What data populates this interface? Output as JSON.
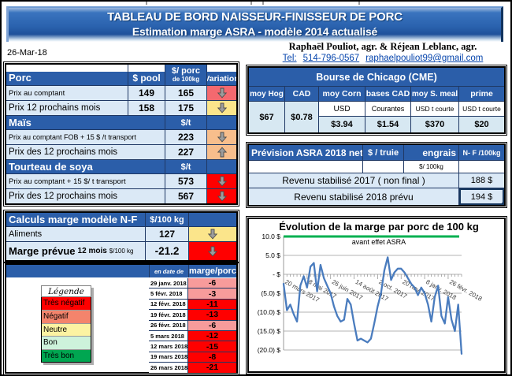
{
  "header": {
    "title1": "TABLEAU DE BORD NAISSEUR-FINISSEUR DE PORC",
    "title2": "Estimation marge ASRA - modèle 2014 actualisé"
  },
  "date_label": "26-Mar-18",
  "contact": {
    "names": "Raphaël Pouliot, agr.    &    Réjean Leblanc, agr.",
    "tel_label": "Tel:",
    "phone": "514-796-0567",
    "email": "raphaelpouliot99@gmail.com"
  },
  "colors": {
    "header_blue": "#2b5ea9",
    "light_blue": "#dbe9f6",
    "red": "#ff0000",
    "coral": "#f4696f",
    "pink": "#f79b9b",
    "yellow": "#fbe58b",
    "peach": "#f8be8c",
    "green": "#00a651",
    "chart_line": "#4a7cbe",
    "reference_green": "#00b050"
  },
  "porc": {
    "header": {
      "col1": "Porc",
      "col2": "$ pool",
      "col3a": "$/ porc",
      "col3b": "de 100kg",
      "col4": "Variation"
    },
    "rows": [
      {
        "label": "Prix au comptant",
        "pool": "149",
        "value": "165",
        "dir": "down",
        "color": "#f4696f"
      },
      {
        "label": "Prix 12 prochains mois",
        "pool": "158",
        "value": "175",
        "dir": "down",
        "color": "#fbe58b"
      }
    ],
    "mais": {
      "title": "Maïs",
      "unit": "$/t",
      "rows": [
        {
          "label": "Prix au comptant  FOB + 15 $ /t transport",
          "value": "223",
          "dir": "down",
          "color": "#f8be8c"
        },
        {
          "label": "Prix des 12 prochains mois",
          "value": "227",
          "dir": "up",
          "color": "#f8be8c"
        }
      ]
    },
    "soya": {
      "title": "Tourteau de soya",
      "unit": "$/t",
      "rows": [
        {
          "label": "Prix au comptant  + 15 $/ t  transport",
          "value": "573",
          "dir": "down",
          "color": "#ff0000"
        },
        {
          "label": "Prix des 12 prochains mois",
          "value": "567",
          "dir": "down",
          "color": "#ff0000"
        }
      ]
    }
  },
  "cme": {
    "title": "Bourse de Chicago (CME)",
    "cols": [
      {
        "h": "moy Hog",
        "sub": "",
        "v": "$67"
      },
      {
        "h": "CAD",
        "sub": "",
        "v": "$0.78"
      },
      {
        "h": "moy Corn",
        "sub": "USD",
        "v": "$3.94"
      },
      {
        "h": "bases CAD",
        "sub": "Courantes",
        "v": "$1.54"
      },
      {
        "h": "moy S. meal",
        "sub": "USD t courte",
        "v": "$370"
      },
      {
        "h": "prime",
        "sub": "USD t courte",
        "v": "$20"
      }
    ]
  },
  "asra": {
    "title": "Prévision ASRA 2018 net",
    "col2": "$ / truie",
    "col3": "engrais",
    "col4": "N- F /100kg",
    "sub3": "$/ 100kg",
    "rows": [
      {
        "label": "Revenu stabilisé 2017 ( non final )",
        "value": "188 $"
      },
      {
        "label": "Revenu stabilisé 2018 prévu",
        "value": "194 $"
      }
    ]
  },
  "calc": {
    "title": "Calculs marge  modèle N-F",
    "unit": "$/100 kg",
    "aliments": {
      "label": "Aliments",
      "value": "127",
      "dir": "down",
      "color": "#fbe58b"
    },
    "marge": {
      "label": "Marge prévue",
      "label2": "12 mois",
      "label3": "$/100 kg",
      "value": "-21.2",
      "dir": "down",
      "color": "#ff0000"
    }
  },
  "history": {
    "col_date": "en date de",
    "col_marge": "marge/porc",
    "rows": [
      {
        "date": "29 janv. 2018",
        "value": "-6",
        "color": "#f79b9b"
      },
      {
        "date": "5 févr. 2018",
        "value": "-3",
        "color": "#f79b9b"
      },
      {
        "date": "12 févr. 2018",
        "value": "-11",
        "color": "#ff0000"
      },
      {
        "date": "19 févr. 2018",
        "value": "-13",
        "color": "#ff0000"
      },
      {
        "date": "26 févr. 2018",
        "value": "-6",
        "color": "#f79b9b"
      },
      {
        "date": "5 mars 2018",
        "value": "-12",
        "color": "#ff0000"
      },
      {
        "date": "12 mars 2018",
        "value": "-15",
        "color": "#ff0000"
      },
      {
        "date": "19 mars 2018",
        "value": "-8",
        "color": "#ff0000"
      },
      {
        "date": "26 mars 2018",
        "value": "-21",
        "color": "#ff0000"
      }
    ]
  },
  "legend": {
    "title": "Légende",
    "items": [
      {
        "label": "Très négatif",
        "color": "#ff0000"
      },
      {
        "label": "Négatif",
        "color": "#f4846c"
      },
      {
        "label": "Neutre",
        "color": "#fcf3a2"
      },
      {
        "label": "Bon",
        "color": "#cdf2db"
      },
      {
        "label": "Très bon",
        "color": "#00a651"
      }
    ]
  },
  "chart_data": {
    "type": "line",
    "title": "Évolution de la marge par porc de 100 kg",
    "subtitle": "avant effet ASRA",
    "xlabel": "",
    "ylabel": "$ / porc de 100 kg",
    "ylim": [
      -20,
      10
    ],
    "ytick_values": [
      10,
      5,
      0,
      -5,
      -10,
      -15,
      -20
    ],
    "ytick_labels": [
      "10.0 $",
      "5.0 $",
      "-   $",
      "(5.0) $",
      "(10.0) $",
      "(15.0) $",
      "(20.0) $"
    ],
    "x_frequency": "weekly",
    "xtick_positions": [
      0,
      7,
      14,
      21,
      28,
      35,
      42,
      49
    ],
    "xtick_labels": [
      "20 mars 2017",
      "8 mai 2017",
      "26 juin 2017",
      "14 août 2017",
      "2 oct. 2017",
      "20 nov. 2017",
      "8 janv. 2018",
      "26 févr. 2018"
    ],
    "grid": true,
    "reference_line": {
      "y": 10,
      "color": "#00b050"
    },
    "series": [
      {
        "name": "marge par porc avant effet ASRA",
        "color": "#4a7cbe",
        "values": [
          -2.5,
          -9.5,
          -8,
          -10.5,
          -12.5,
          -3,
          -0.5,
          -3.5,
          2,
          3,
          -4.5,
          2.5,
          -1,
          -3,
          -5,
          -8.5,
          -11,
          -12.5,
          -12,
          -6.5,
          -8,
          -13,
          -17.5,
          -17,
          -17.5,
          -18,
          -17,
          -13,
          -8.5,
          -5,
          1,
          4.5,
          -1.5,
          0.5,
          1.5,
          1.5,
          0.5,
          -1,
          -2.5,
          -3.5,
          -5.5,
          -3.5,
          -5,
          -8,
          -12.5,
          -6,
          -3,
          -11,
          -13,
          -6,
          -12,
          -15,
          -8,
          -21
        ]
      }
    ]
  }
}
